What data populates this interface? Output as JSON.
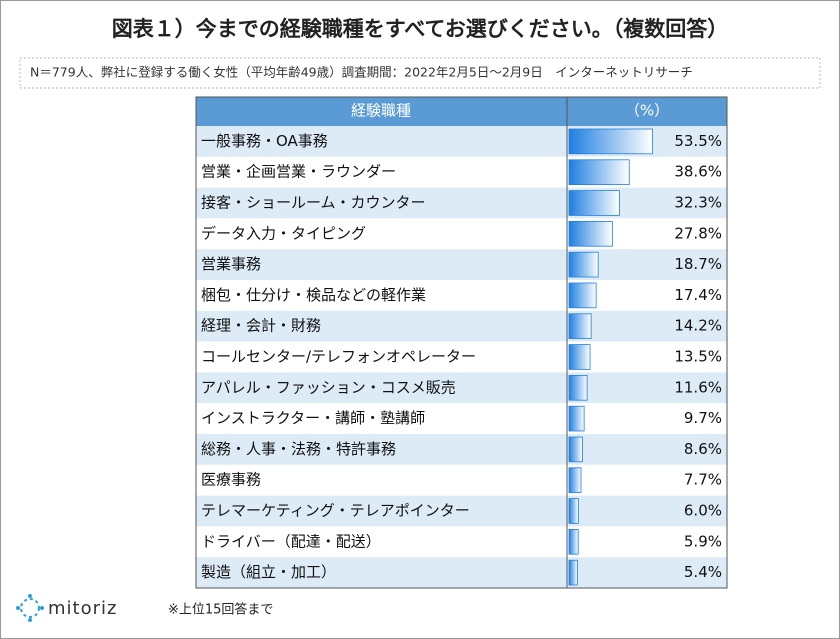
{
  "chart_data": {
    "type": "bar",
    "title": "図表１）今までの経験職種をすべてお選びください。（複数回答）",
    "subtitle": "N＝779人、弊社に登録する働く女性（平均年齢49歳）調査期間：2022年2月5日～2月9日　インターネットリサーチ",
    "category_header": "経験職種",
    "value_header": "（%）",
    "categories": [
      "一般事務・OA事務",
      "営業・企画営業・ラウンダー",
      "接客・ショールーム・カウンター",
      "データ入力・タイピング",
      "営業事務",
      "梱包・仕分け・検品などの軽作業",
      "経理・会計・財務",
      "コールセンター/テレフォンオペレーター",
      "アパレル・ファッション・コスメ販売",
      "インストラクター・講師・塾講師",
      "総務・人事・法務・特許事務",
      "医療事務",
      "テレマーケティング・テレアポインター",
      "ドライバー（配達・配送）",
      "製造（組立・加工）"
    ],
    "values": [
      53.5,
      38.6,
      32.3,
      27.8,
      18.7,
      17.4,
      14.2,
      13.5,
      11.6,
      9.7,
      8.6,
      7.7,
      6.0,
      5.9,
      5.4
    ],
    "value_labels": [
      "53.5%",
      "38.6%",
      "32.3%",
      "27.8%",
      "18.7%",
      "17.4%",
      "14.2%",
      "13.5%",
      "11.6%",
      "9.7%",
      "8.6%",
      "7.7%",
      "6.0%",
      "5.9%",
      "5.4%"
    ],
    "xlim": [
      0,
      100
    ],
    "color": "#1e7fe0",
    "footnote": "※上位15回答まで",
    "logo": "mitoriz"
  }
}
